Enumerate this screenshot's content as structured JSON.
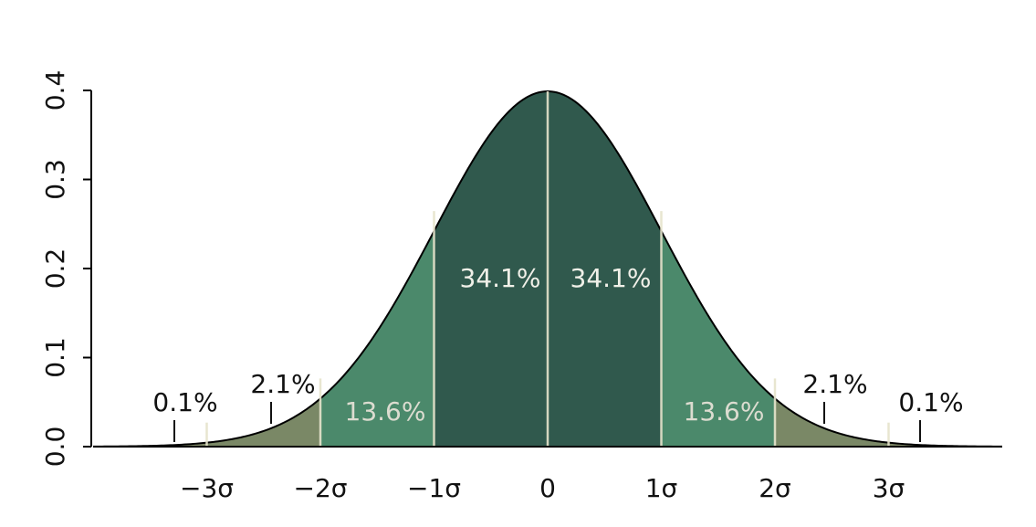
{
  "chart_data": {
    "type": "normal",
    "mean": 0,
    "sd": 1,
    "xlim": [
      -4,
      4
    ],
    "ylim": [
      0,
      0.4
    ],
    "xticks": [
      {
        "value": -3,
        "label": "−3σ"
      },
      {
        "value": -2,
        "label": "−2σ"
      },
      {
        "value": -1,
        "label": "−1σ"
      },
      0,
      {
        "value": 1,
        "label": "1σ"
      },
      {
        "value": 2,
        "label": "2σ"
      },
      {
        "value": 3,
        "label": "3σ"
      }
    ],
    "yticks": [
      {
        "value": 0,
        "label": "0.0"
      },
      0.1,
      0.2,
      0.3,
      0.4
    ],
    "regions": [
      {
        "value": 0.1,
        "label": "0.1%",
        "from": null,
        "to": -3,
        "color": "#7e8866"
      },
      {
        "value": 2.1,
        "label": "2.1%",
        "from": -3,
        "to": -2,
        "color": "#7a8866"
      },
      {
        "value": 13.6,
        "label": "13.6%",
        "from": -2,
        "to": -1,
        "color": "#4b896b"
      },
      {
        "value": 34.1,
        "label": "34.1%",
        "from": -1,
        "to": 0,
        "color": "#30594d"
      },
      {
        "value": 34.1,
        "label": "34.1%",
        "from": 0,
        "to": 1,
        "color": "#30594d"
      },
      {
        "value": 13.6,
        "label": "13.6%",
        "from": 1,
        "to": 2,
        "color": "#4b896b"
      },
      {
        "value": 2.1,
        "label": "2.1%",
        "from": 2,
        "to": 3,
        "color": "#7a8866"
      },
      {
        "value": 0.1,
        "label": "0.1%",
        "from": 3,
        "to": null,
        "color": "#7e8866"
      }
    ]
  }
}
